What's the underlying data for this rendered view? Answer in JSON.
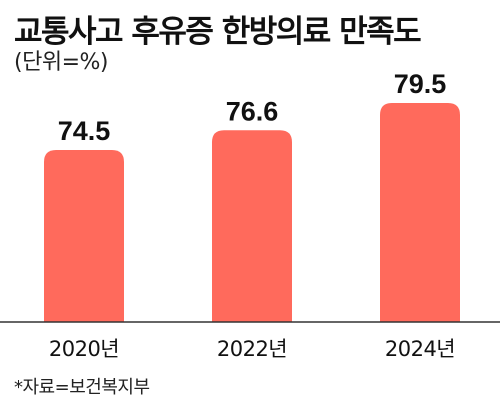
{
  "title": "교통사고 후유증 한방의료 만족도",
  "subtitle": "(단위=%)",
  "source": "*자료=보건복지부",
  "colors": {
    "bar": "#ff6a5c",
    "axis": "#333333",
    "text": "#111111"
  },
  "chart_data": {
    "type": "bar",
    "categories": [
      "2020년",
      "2022년",
      "2024년"
    ],
    "values": [
      74.5,
      76.6,
      79.5
    ],
    "title": "교통사고 후유증 한방의료 만족도",
    "xlabel": "",
    "ylabel": "",
    "unit": "%",
    "grid": false,
    "legend": "none"
  }
}
